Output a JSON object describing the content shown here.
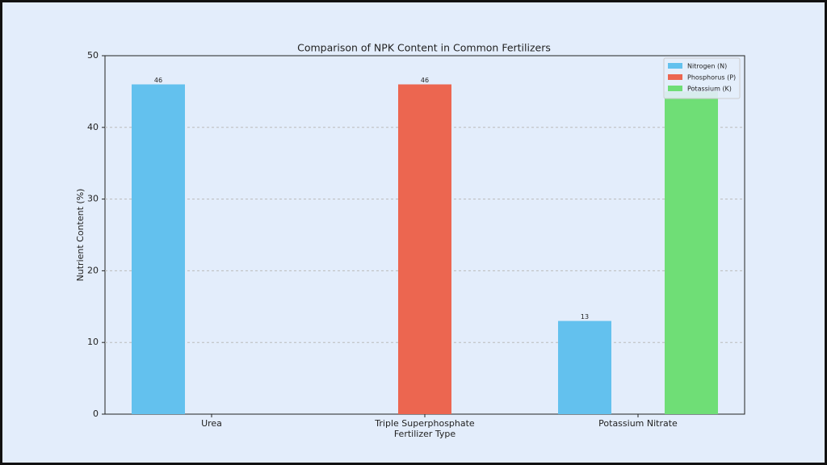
{
  "chart_data": {
    "type": "grouped_bar",
    "title": "Comparison of NPK Content in Common Fertilizers",
    "x_label": "Fertilizer Type",
    "y_label": "Nutrient Content (%)",
    "categories": [
      "Urea",
      "Triple Superphosphate",
      "Potassium Nitrate"
    ],
    "series": [
      {
        "name": "Nitrogen (N)",
        "color": "#63c1ee",
        "values": [
          46,
          0,
          13
        ]
      },
      {
        "name": "Phosphorus (P)",
        "color": "#ec6650",
        "values": [
          0,
          46,
          0
        ]
      },
      {
        "name": "Potassium (K)",
        "color": "#6fde76",
        "values": [
          0,
          0,
          45
        ]
      }
    ],
    "ylim": [
      0,
      50
    ],
    "yticks": [
      0,
      10,
      20,
      30,
      40,
      50
    ],
    "grid": true,
    "legend": "upper-right"
  }
}
